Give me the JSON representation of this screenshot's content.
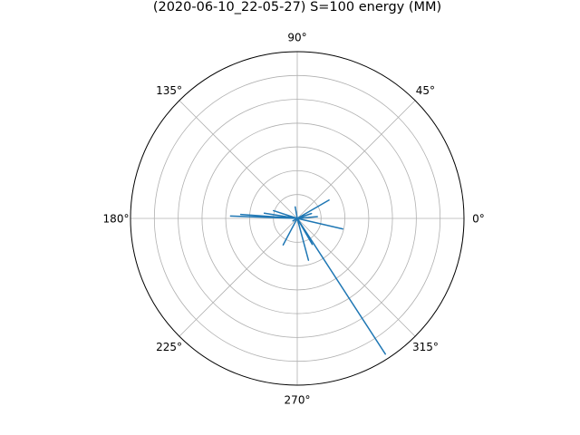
{
  "chart_data": {
    "type": "polar-line",
    "title": "(2020-06-10_22-05-27) S=100 energy (MM)",
    "angle_ticks": [
      "0°",
      "45°",
      "90°",
      "135°",
      "180°",
      "225°",
      "270°",
      "315°"
    ],
    "radial_grid_fractions": [
      0.143,
      0.286,
      0.429,
      0.571,
      0.714,
      0.857,
      1.0
    ],
    "rmax": 1.0,
    "grid": true,
    "series": [
      {
        "color": "#1f77b4",
        "points": [
          {
            "theta_deg": 0,
            "r": 0
          },
          {
            "theta_deg": 303,
            "r": 0.97
          },
          {
            "theta_deg": 0,
            "r": 0
          },
          {
            "theta_deg": 162,
            "r": 0.15
          },
          {
            "theta_deg": 0,
            "r": 0
          },
          {
            "theta_deg": 178,
            "r": 0.4
          },
          {
            "theta_deg": 0,
            "r": 0
          },
          {
            "theta_deg": 176,
            "r": 0.34
          },
          {
            "theta_deg": 0,
            "r": 0
          },
          {
            "theta_deg": 171,
            "r": 0.2
          },
          {
            "theta_deg": 0,
            "r": 0
          },
          {
            "theta_deg": 347,
            "r": 0.28
          },
          {
            "theta_deg": 0,
            "r": 0
          },
          {
            "theta_deg": 19,
            "r": 0.09
          },
          {
            "theta_deg": 0,
            "r": 0
          },
          {
            "theta_deg": 30,
            "r": 0.22
          },
          {
            "theta_deg": 0,
            "r": 0
          },
          {
            "theta_deg": 285,
            "r": 0.26
          },
          {
            "theta_deg": 0,
            "r": 0
          },
          {
            "theta_deg": 300,
            "r": 0.18
          },
          {
            "theta_deg": 0,
            "r": 0
          },
          {
            "theta_deg": 242,
            "r": 0.18
          },
          {
            "theta_deg": 0,
            "r": 0
          },
          {
            "theta_deg": 100,
            "r": 0.07
          },
          {
            "theta_deg": 0,
            "r": 0
          },
          {
            "theta_deg": 210,
            "r": 0.03
          },
          {
            "theta_deg": 0,
            "r": 0
          },
          {
            "theta_deg": 5,
            "r": 0.12
          }
        ]
      }
    ]
  }
}
